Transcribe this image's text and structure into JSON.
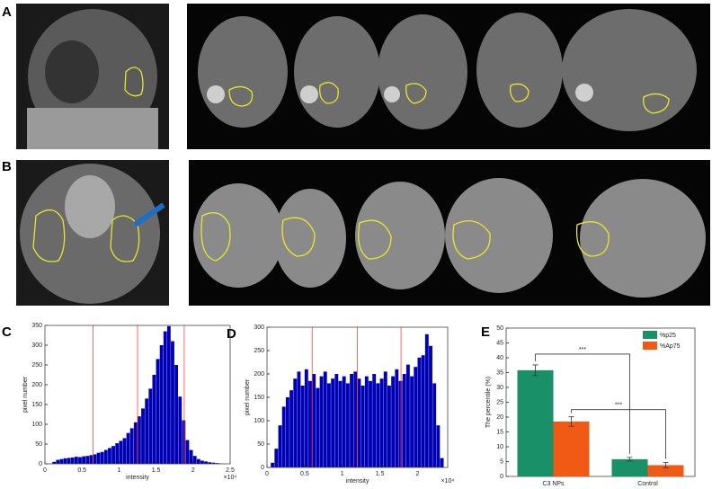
{
  "panel_labels": [
    "A",
    "B",
    "C",
    "D",
    "E"
  ],
  "chart_data": [
    {
      "type": "histogram",
      "x_label": "intensity",
      "y_label": "pixel number",
      "x_multiplier": "×10⁴",
      "color": "#0000b4",
      "vline_color": "#ff4040",
      "vlines": [
        0.65,
        1.25,
        1.88
      ],
      "xlim": [
        0,
        2.5
      ],
      "xticks": [
        0,
        0.5,
        1,
        1.5,
        2,
        2.5
      ],
      "ylim": [
        0,
        350
      ],
      "yticks": [
        0,
        50,
        100,
        150,
        200,
        250,
        300,
        350
      ],
      "bins": [
        0.1,
        0.15,
        0.2,
        0.25,
        0.3,
        0.35,
        0.4,
        0.45,
        0.5,
        0.55,
        0.6,
        0.65,
        0.7,
        0.75,
        0.8,
        0.85,
        0.9,
        0.95,
        1,
        1.05,
        1.1,
        1.15,
        1.2,
        1.25,
        1.3,
        1.35,
        1.4,
        1.45,
        1.5,
        1.55,
        1.6,
        1.65,
        1.7,
        1.75,
        1.8,
        1.85,
        1.9,
        1.95,
        2,
        2.05,
        2.1,
        2.15,
        2.2,
        2.25,
        2.3,
        2.35,
        2.4
      ],
      "values": [
        5,
        10,
        12,
        14,
        15,
        16,
        18,
        17,
        19,
        20,
        22,
        24,
        28,
        30,
        35,
        40,
        45,
        52,
        58,
        65,
        78,
        90,
        105,
        120,
        140,
        165,
        190,
        225,
        265,
        300,
        335,
        348,
        310,
        250,
        170,
        110,
        60,
        35,
        20,
        12,
        8,
        6,
        4,
        3,
        2,
        1
      ]
    },
    {
      "type": "histogram",
      "x_label": "intensity",
      "y_label": "pixel number",
      "x_multiplier": "×10⁴",
      "color": "#0000b4",
      "vline_color": "#ff4040",
      "vlines": [
        0.6,
        1.2,
        1.78
      ],
      "xlim": [
        0,
        2.4
      ],
      "xticks": [
        0,
        0.5,
        1,
        1.5,
        2
      ],
      "ylim": [
        0,
        300
      ],
      "yticks": [
        0,
        50,
        100,
        150,
        200,
        250,
        300
      ],
      "bins": [
        0.05,
        0.1,
        0.15,
        0.2,
        0.25,
        0.3,
        0.35,
        0.4,
        0.45,
        0.5,
        0.55,
        0.6,
        0.65,
        0.7,
        0.75,
        0.8,
        0.85,
        0.9,
        0.95,
        1,
        1.05,
        1.1,
        1.15,
        1.2,
        1.25,
        1.3,
        1.35,
        1.4,
        1.45,
        1.5,
        1.55,
        1.6,
        1.65,
        1.7,
        1.75,
        1.8,
        1.85,
        1.9,
        1.95,
        2,
        2.05,
        2.1,
        2.15,
        2.2,
        2.25,
        2.3,
        2.35
      ],
      "values": [
        10,
        40,
        90,
        130,
        150,
        165,
        190,
        205,
        175,
        210,
        185,
        200,
        170,
        195,
        205,
        180,
        190,
        200,
        185,
        195,
        180,
        200,
        205,
        190,
        175,
        195,
        185,
        200,
        180,
        190,
        205,
        175,
        195,
        210,
        185,
        200,
        220,
        195,
        215,
        235,
        240,
        285,
        260,
        180,
        90,
        20
      ]
    },
    {
      "type": "bar",
      "y_label": "The percentile (%)",
      "categories": [
        "C3 NPs",
        "Control"
      ],
      "series": [
        {
          "name": "%p25",
          "color": "#1a9068",
          "values": [
            35.8,
            5.8
          ],
          "errors": [
            1.8,
            0.6
          ]
        },
        {
          "name": "%Ap75",
          "color": "#f05a14",
          "values": [
            18.5,
            3.8
          ],
          "errors": [
            1.6,
            0.9
          ]
        }
      ],
      "annotations": [
        "***",
        "***"
      ],
      "ylim": [
        0,
        50
      ],
      "yticks": [
        0,
        5,
        10,
        15,
        20,
        25,
        30,
        35,
        40,
        45,
        50
      ],
      "legend": "top-right"
    }
  ]
}
